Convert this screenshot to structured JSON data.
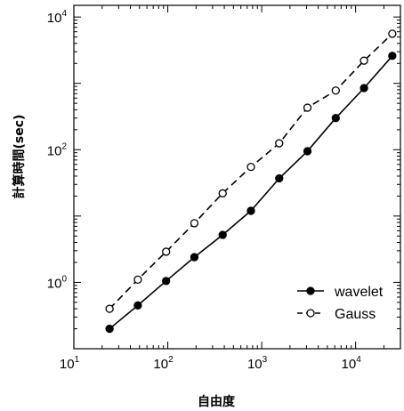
{
  "chart_data": {
    "type": "line",
    "xscale": "log",
    "yscale": "log",
    "xlim": [
      10,
      30000
    ],
    "ylim": [
      0.1,
      15000
    ],
    "xlabel": "自由度",
    "ylabel": "計算時間(sec)",
    "legend_position": "bottom-right",
    "grid": false,
    "x_ticks": [
      {
        "base": "10",
        "exp": "1",
        "value": 10
      },
      {
        "base": "10",
        "exp": "2",
        "value": 100
      },
      {
        "base": "10",
        "exp": "3",
        "value": 1000
      },
      {
        "base": "10",
        "exp": "4",
        "value": 10000
      }
    ],
    "y_ticks": [
      {
        "base": "10",
        "exp": "0",
        "value": 1
      },
      {
        "base": "10",
        "exp": "2",
        "value": 100
      },
      {
        "base": "10",
        "exp": "4",
        "value": 10000
      }
    ],
    "x": [
      24,
      48,
      96,
      192,
      384,
      768,
      1536,
      3072,
      6144,
      12288,
      24576
    ],
    "series": [
      {
        "name": "wavelet",
        "marker": "filled-circle",
        "line_style": "solid",
        "color": "#000000",
        "values": [
          0.2,
          0.45,
          1.05,
          2.4,
          5.2,
          12,
          37,
          95,
          300,
          850,
          2600
        ]
      },
      {
        "name": "Gauss",
        "marker": "open-circle",
        "line_style": "dashed",
        "color": "#000000",
        "values": [
          0.4,
          1.1,
          2.9,
          7.8,
          22,
          55,
          125,
          430,
          780,
          2200,
          5600
        ]
      }
    ]
  }
}
